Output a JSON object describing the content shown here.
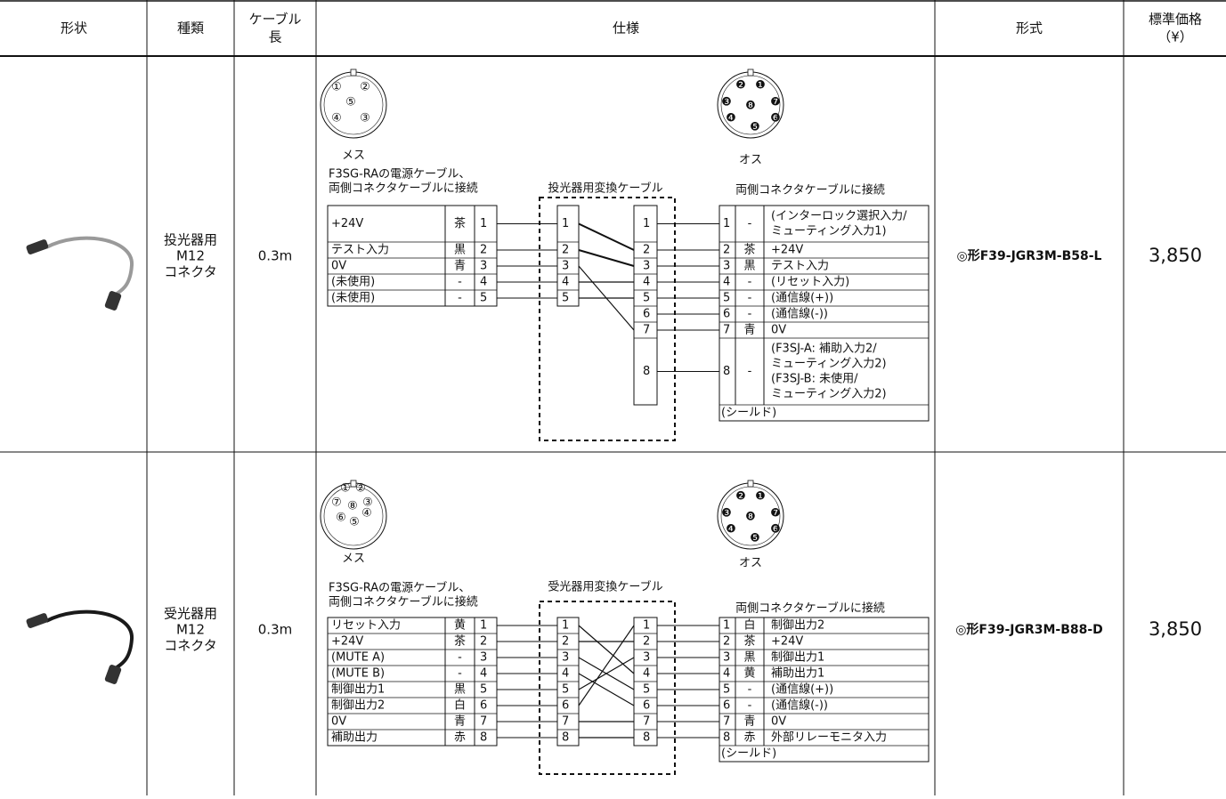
{
  "header": {
    "shape": "形状",
    "kind": "種類",
    "length": [
      "ケーブル",
      "長"
    ],
    "spec": "仕様",
    "model": "形式",
    "price": [
      "標準価格",
      "（¥）"
    ]
  },
  "rows": [
    {
      "kind": [
        "投光器用",
        "M12",
        "コネクタ"
      ],
      "length": "0.3m",
      "model": "◎形F39-JGR3M-B58-L",
      "price": "3,850",
      "spec": {
        "female_pins": [
          "①",
          "②",
          "⑤",
          "④",
          "③"
        ],
        "female_label": "メス",
        "male_pins": [
          "❷",
          "❶",
          "❸",
          "❽",
          "❼",
          "❹",
          "❻",
          "❺"
        ],
        "male_label": "オス",
        "left_caption": [
          "F3SG-RAの電源ケーブル、",
          "両側コネクタケーブルに接続"
        ],
        "middle_caption": "投光器用変換ケーブル",
        "right_caption": "両側コネクタケーブルに接続",
        "left_table": [
          [
            "+24V",
            "茶",
            "1"
          ],
          [
            "テスト入力",
            "黒",
            "2"
          ],
          [
            "0V",
            "青",
            "3"
          ],
          [
            "(未使用)",
            "-",
            "4"
          ],
          [
            "(未使用)",
            "-",
            "5"
          ]
        ],
        "mid_left_pins": [
          "1",
          "2",
          "3",
          "4",
          "5"
        ],
        "mid_right_pins": [
          "1",
          "2",
          "3",
          "4",
          "5",
          "6",
          "7",
          "8"
        ],
        "right_table": [
          {
            "pin": "1",
            "color": "-",
            "signal": [
              "(インターロック選択入力/",
              "ミューティング入力1)"
            ]
          },
          {
            "pin": "2",
            "color": "茶",
            "signal": [
              "+24V"
            ]
          },
          {
            "pin": "3",
            "color": "黒",
            "signal": [
              "テスト入力"
            ]
          },
          {
            "pin": "4",
            "color": "-",
            "signal": [
              "(リセット入力)"
            ]
          },
          {
            "pin": "5",
            "color": "-",
            "signal": [
              "(通信線(+))"
            ]
          },
          {
            "pin": "6",
            "color": "-",
            "signal": [
              "(通信線(-))"
            ]
          },
          {
            "pin": "7",
            "color": "青",
            "signal": [
              "0V"
            ]
          },
          {
            "pin": "8",
            "color": "-",
            "signal": [
              "(F3SJ-A: 補助入力2/",
              "ミューティング入力2)",
              "(F3SJ-B: 未使用/",
              "ミューティング入力2)"
            ]
          }
        ],
        "shield": "(シールド)"
      }
    },
    {
      "kind": [
        "受光器用",
        "M12",
        "コネクタ"
      ],
      "length": "0.3m",
      "model": "◎形F39-JGR3M-B88-D",
      "price": "3,850",
      "spec": {
        "female_pins": [
          "①",
          "②",
          "⑦",
          "⑧",
          "③",
          "⑥",
          "④",
          "⑤"
        ],
        "female_label": "メス",
        "male_pins": [
          "❷",
          "❶",
          "❸",
          "❽",
          "❼",
          "❹",
          "❻",
          "❺"
        ],
        "male_label": "オス",
        "left_caption": [
          "F3SG-RAの電源ケーブル、",
          "両側コネクタケーブルに接続"
        ],
        "middle_caption": "受光器用変換ケーブル",
        "right_caption": "両側コネクタケーブルに接続",
        "left_table": [
          [
            "リセット入力",
            "黄",
            "1"
          ],
          [
            "+24V",
            "茶",
            "2"
          ],
          [
            "(MUTE A)",
            "-",
            "3"
          ],
          [
            "(MUTE B)",
            "-",
            "4"
          ],
          [
            "制御出力1",
            "黒",
            "5"
          ],
          [
            "制御出力2",
            "白",
            "6"
          ],
          [
            "0V",
            "青",
            "7"
          ],
          [
            "補助出力",
            "赤",
            "8"
          ]
        ],
        "mid_left_pins": [
          "1",
          "2",
          "3",
          "4",
          "5",
          "6",
          "7",
          "8"
        ],
        "mid_right_pins": [
          "1",
          "2",
          "3",
          "4",
          "5",
          "6",
          "7",
          "8"
        ],
        "right_table": [
          {
            "pin": "1",
            "color": "白",
            "signal": [
              "制御出力2"
            ]
          },
          {
            "pin": "2",
            "color": "茶",
            "signal": [
              "+24V"
            ]
          },
          {
            "pin": "3",
            "color": "黒",
            "signal": [
              "制御出力1"
            ]
          },
          {
            "pin": "4",
            "color": "黄",
            "signal": [
              "補助出力1"
            ]
          },
          {
            "pin": "5",
            "color": "-",
            "signal": [
              "(通信線(+))"
            ]
          },
          {
            "pin": "6",
            "color": "-",
            "signal": [
              "(通信線(-))"
            ]
          },
          {
            "pin": "7",
            "color": "青",
            "signal": [
              "0V"
            ]
          },
          {
            "pin": "8",
            "color": "赤",
            "signal": [
              "外部リレーモニタ入力"
            ]
          }
        ],
        "shield": "(シールド)"
      }
    }
  ]
}
